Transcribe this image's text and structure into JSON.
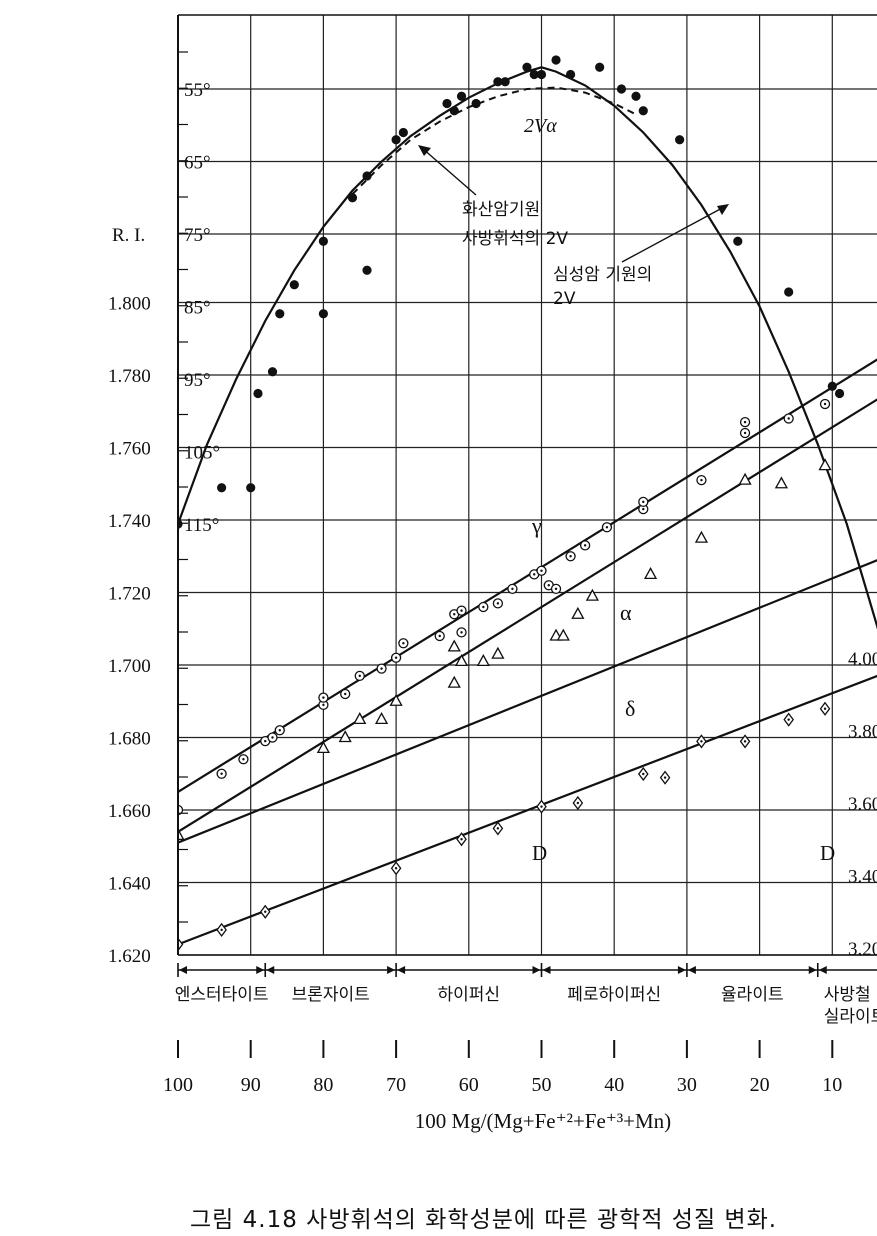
{
  "chart_data": {
    "type": "scatter",
    "caption": "그림 4.18  사방휘석의 화학성분에 따른 광학적 성질 변화.",
    "xlabel": "100 Mg/(Mg+Fe⁺²+Fe⁺³+Mn)",
    "x_ticks": [
      "100",
      "90",
      "80",
      "70",
      "60",
      "50",
      "40",
      "30",
      "20",
      "10"
    ],
    "xlim": [
      100,
      0
    ],
    "ri_label": "R. I.",
    "ri_ticks": [
      "1.620",
      "1.640",
      "1.660",
      "1.680",
      "1.700",
      "1.720",
      "1.740",
      "1.760",
      "1.780",
      "1.800"
    ],
    "ri_range": [
      1.62,
      1.8
    ],
    "angle_ticks": [
      "55°",
      "65°",
      "75°",
      "85°",
      "95°",
      "105°",
      "115°"
    ],
    "angle_range": [
      55,
      115
    ],
    "density_ticks": [
      "3.20",
      "3.40",
      "3.60",
      "3.80",
      "4.00"
    ],
    "density_range": [
      3.2,
      4.0
    ],
    "mineral_ranges": [
      {
        "name": "엔스터타이트",
        "from": 100,
        "to": 88
      },
      {
        "name": "브론자이트",
        "from": 88,
        "to": 70
      },
      {
        "name": "하이퍼신",
        "from": 70,
        "to": 50
      },
      {
        "name": "페로하이퍼신",
        "from": 50,
        "to": 30
      },
      {
        "name": "율라이트",
        "from": 30,
        "to": 12
      },
      {
        "name": "사방철\n실라이트",
        "from": 12,
        "to": 0
      }
    ],
    "labels": {
      "gamma": "γ",
      "alpha": "α",
      "delta": "δ",
      "two_v_alpha": "2Vα",
      "D": "D",
      "volcanic": "화산암기원\n사방휘석의 2V",
      "plutonic": "심성암 기원의\n2V"
    },
    "series": [
      {
        "name": "γ",
        "marker": "circle-dot",
        "axis": "ri",
        "line": [
          [
            100,
            1.665
          ],
          [
            0,
            1.789
          ]
        ],
        "points": [
          [
            100,
            1.66
          ],
          [
            94,
            1.67
          ],
          [
            91,
            1.674
          ],
          [
            88,
            1.679
          ],
          [
            87,
            1.68
          ],
          [
            86,
            1.682
          ],
          [
            80,
            1.689
          ],
          [
            80,
            1.691
          ],
          [
            77,
            1.692
          ],
          [
            75,
            1.697
          ],
          [
            72,
            1.699
          ],
          [
            70,
            1.702
          ],
          [
            69,
            1.706
          ],
          [
            64,
            1.708
          ],
          [
            62,
            1.714
          ],
          [
            61,
            1.715
          ],
          [
            61,
            1.709
          ],
          [
            58,
            1.716
          ],
          [
            56,
            1.717
          ],
          [
            54,
            1.721
          ],
          [
            51,
            1.725
          ],
          [
            50,
            1.726
          ],
          [
            49,
            1.722
          ],
          [
            48,
            1.721
          ],
          [
            46,
            1.73
          ],
          [
            44,
            1.733
          ],
          [
            41,
            1.738
          ],
          [
            36,
            1.743
          ],
          [
            36,
            1.745
          ],
          [
            28,
            1.751
          ],
          [
            22,
            1.764
          ],
          [
            22,
            1.767
          ],
          [
            16,
            1.768
          ],
          [
            11,
            1.772
          ]
        ]
      },
      {
        "name": "α",
        "marker": "triangle",
        "axis": "ri",
        "line": [
          [
            100,
            1.654
          ],
          [
            0,
            1.778
          ]
        ],
        "points": [
          [
            100,
            1.653
          ],
          [
            80,
            1.677
          ],
          [
            77,
            1.68
          ],
          [
            75,
            1.685
          ],
          [
            72,
            1.685
          ],
          [
            70,
            1.69
          ],
          [
            62,
            1.705
          ],
          [
            62,
            1.695
          ],
          [
            61,
            1.701
          ],
          [
            58,
            1.701
          ],
          [
            56,
            1.703
          ],
          [
            48,
            1.708
          ],
          [
            47,
            1.708
          ],
          [
            45,
            1.714
          ],
          [
            43,
            1.719
          ],
          [
            35,
            1.725
          ],
          [
            28,
            1.735
          ],
          [
            22,
            1.751
          ],
          [
            17,
            1.75
          ],
          [
            11,
            1.755
          ]
        ]
      },
      {
        "name": "δ",
        "marker": "none",
        "axis": "ri",
        "line": [
          [
            100,
            1.651
          ],
          [
            0,
            1.732
          ]
        ],
        "points": []
      },
      {
        "name": "D",
        "marker": "diamond-dot",
        "axis": "density",
        "line": [
          [
            100,
            3.21
          ],
          [
            0,
            3.98
          ]
        ],
        "points": [
          [
            100,
            3.21
          ],
          [
            94,
            3.25
          ],
          [
            88,
            3.3
          ],
          [
            70,
            3.42
          ],
          [
            61,
            3.5
          ],
          [
            56,
            3.53
          ],
          [
            50,
            3.59
          ],
          [
            45,
            3.6
          ],
          [
            36,
            3.68
          ],
          [
            33,
            3.67
          ],
          [
            28,
            3.77
          ],
          [
            22,
            3.77
          ],
          [
            16,
            3.83
          ],
          [
            11,
            3.86
          ]
        ]
      },
      {
        "name": "2Vα",
        "marker": "dot",
        "axis": "angle",
        "line_type": "curve",
        "line": [
          [
            100,
            115
          ],
          [
            96,
            104
          ],
          [
            92,
            95
          ],
          [
            88,
            87
          ],
          [
            84,
            80
          ],
          [
            80,
            74
          ],
          [
            76,
            69
          ],
          [
            72,
            65
          ],
          [
            68,
            61.5
          ],
          [
            64,
            58.7
          ],
          [
            60,
            56.2
          ],
          [
            56,
            54.2
          ],
          [
            52,
            52.6
          ],
          [
            50,
            52
          ],
          [
            48,
            52.6
          ],
          [
            44,
            54.5
          ],
          [
            40,
            57.3
          ],
          [
            36,
            61
          ],
          [
            32,
            65.5
          ],
          [
            28,
            71
          ],
          [
            24,
            77.5
          ],
          [
            20,
            85
          ],
          [
            16,
            94
          ],
          [
            12,
            104
          ],
          [
            8,
            115
          ],
          [
            0,
            142
          ]
        ],
        "points": [
          [
            100,
            115
          ],
          [
            94,
            110
          ],
          [
            90,
            110
          ],
          [
            89,
            97
          ],
          [
            87,
            94
          ],
          [
            86,
            86
          ],
          [
            84,
            82
          ],
          [
            80,
            76
          ],
          [
            80,
            86
          ],
          [
            76,
            70
          ],
          [
            74,
            67
          ],
          [
            74,
            80
          ],
          [
            70,
            62
          ],
          [
            69,
            61
          ],
          [
            63,
            57
          ],
          [
            62,
            58
          ],
          [
            61,
            56
          ],
          [
            59,
            57
          ],
          [
            56,
            54
          ],
          [
            55,
            54
          ],
          [
            52,
            52
          ],
          [
            51,
            53
          ],
          [
            50,
            53
          ],
          [
            48,
            51
          ],
          [
            46,
            53
          ],
          [
            42,
            52
          ],
          [
            39,
            55
          ],
          [
            37,
            56
          ],
          [
            36,
            58
          ],
          [
            31,
            62
          ],
          [
            23,
            76
          ],
          [
            16,
            83
          ],
          [
            10,
            96
          ],
          [
            9,
            97
          ]
        ]
      },
      {
        "name": "화산암기원 사방휘석의 2V",
        "marker": "none",
        "axis": "angle",
        "line_type": "dashed-curve",
        "line": [
          [
            76,
            69.5
          ],
          [
            72,
            65.5
          ],
          [
            68,
            62
          ],
          [
            64,
            59.5
          ],
          [
            60,
            57.5
          ],
          [
            56,
            56
          ],
          [
            52,
            55
          ],
          [
            48,
            54.8
          ],
          [
            44,
            55.5
          ],
          [
            40,
            57
          ],
          [
            37,
            58.5
          ]
        ],
        "points": []
      }
    ]
  }
}
